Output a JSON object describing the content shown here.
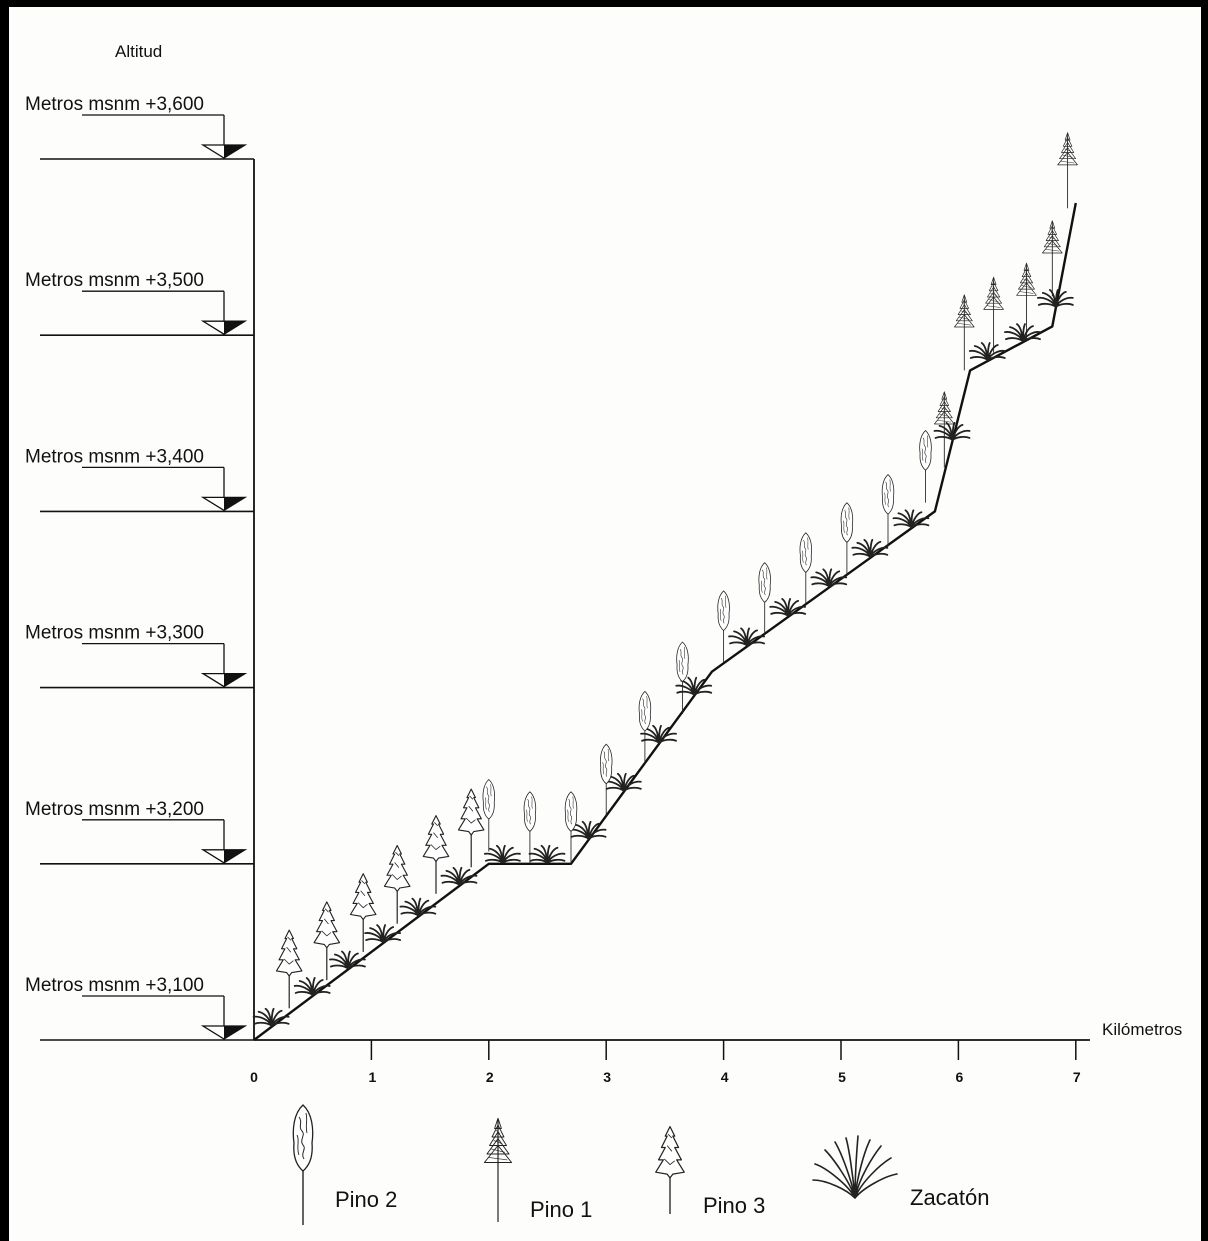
{
  "y_title": "Altitud",
  "x_title": "Kilómetros",
  "altitude_levels": [
    {
      "label": "Metros msnm  +3,600",
      "value": 3600
    },
    {
      "label": "Metros msnm  +3,500",
      "value": 3500
    },
    {
      "label": "Metros msnm  +3,400",
      "value": 3400
    },
    {
      "label": "Metros msnm  +3,300",
      "value": 3300
    },
    {
      "label": "Metros msnm  +3,200",
      "value": 3200
    },
    {
      "label": "Metros msnm  +3,100",
      "value": 3100
    }
  ],
  "km_ticks": [
    "0",
    "1",
    "2",
    "3",
    "4",
    "5",
    "6",
    "7"
  ],
  "profile": [
    {
      "km": 0,
      "alt": 3100
    },
    {
      "km": 2,
      "alt": 3200
    },
    {
      "km": 2.7,
      "alt": 3200
    },
    {
      "km": 3.9,
      "alt": 3309
    },
    {
      "km": 5.8,
      "alt": 3400
    },
    {
      "km": 6.1,
      "alt": 3480
    },
    {
      "km": 6.8,
      "alt": 3505
    },
    {
      "km": 7.0,
      "alt": 3575
    }
  ],
  "trees": [
    {
      "type": "pino3",
      "km": 0.3,
      "alt": 3118
    },
    {
      "type": "pino3",
      "km": 0.62,
      "alt": 3134
    },
    {
      "type": "pino3",
      "km": 0.93,
      "alt": 3150
    },
    {
      "type": "pino3",
      "km": 1.22,
      "alt": 3166
    },
    {
      "type": "pino3",
      "km": 1.55,
      "alt": 3183
    },
    {
      "type": "pino3",
      "km": 1.85,
      "alt": 3198
    },
    {
      "type": "pino2",
      "km": 2.0,
      "alt": 3207
    },
    {
      "type": "pino2",
      "km": 2.35,
      "alt": 3200
    },
    {
      "type": "pino2",
      "km": 2.7,
      "alt": 3200
    },
    {
      "type": "pino2",
      "km": 3.0,
      "alt": 3227
    },
    {
      "type": "pino2",
      "km": 3.33,
      "alt": 3257
    },
    {
      "type": "pino2",
      "km": 3.65,
      "alt": 3285
    },
    {
      "type": "pino2",
      "km": 4.0,
      "alt": 3314
    },
    {
      "type": "pino2",
      "km": 4.35,
      "alt": 3330
    },
    {
      "type": "pino2",
      "km": 4.7,
      "alt": 3347
    },
    {
      "type": "pino2",
      "km": 5.05,
      "alt": 3364
    },
    {
      "type": "pino2",
      "km": 5.4,
      "alt": 3380
    },
    {
      "type": "pino2",
      "km": 5.72,
      "alt": 3405
    },
    {
      "type": "pino1",
      "km": 5.88,
      "alt": 3425
    },
    {
      "type": "pino1",
      "km": 6.05,
      "alt": 3480
    },
    {
      "type": "pino1",
      "km": 6.3,
      "alt": 3490
    },
    {
      "type": "pino1",
      "km": 6.58,
      "alt": 3498
    },
    {
      "type": "pino1",
      "km": 6.8,
      "alt": 3522
    },
    {
      "type": "pino1",
      "km": 6.93,
      "alt": 3572
    }
  ],
  "grass": [
    {
      "km": 0.15
    },
    {
      "km": 0.5
    },
    {
      "km": 0.8
    },
    {
      "km": 1.1
    },
    {
      "km": 1.4
    },
    {
      "km": 1.75
    },
    {
      "km": 2.12
    },
    {
      "km": 2.5
    },
    {
      "km": 2.85
    },
    {
      "km": 3.15
    },
    {
      "km": 3.45
    },
    {
      "km": 3.75
    },
    {
      "km": 4.2
    },
    {
      "km": 4.55
    },
    {
      "km": 4.9
    },
    {
      "km": 5.25
    },
    {
      "km": 5.6
    },
    {
      "km": 5.95
    },
    {
      "km": 6.25
    },
    {
      "km": 6.55
    },
    {
      "km": 6.83
    }
  ],
  "legend": [
    {
      "type": "pino2",
      "label": "Pino 2"
    },
    {
      "type": "pino1",
      "label": "Pino 1"
    },
    {
      "type": "pino3",
      "label": "Pino 3"
    },
    {
      "type": "zacaton",
      "label": "Zacatón"
    }
  ]
}
